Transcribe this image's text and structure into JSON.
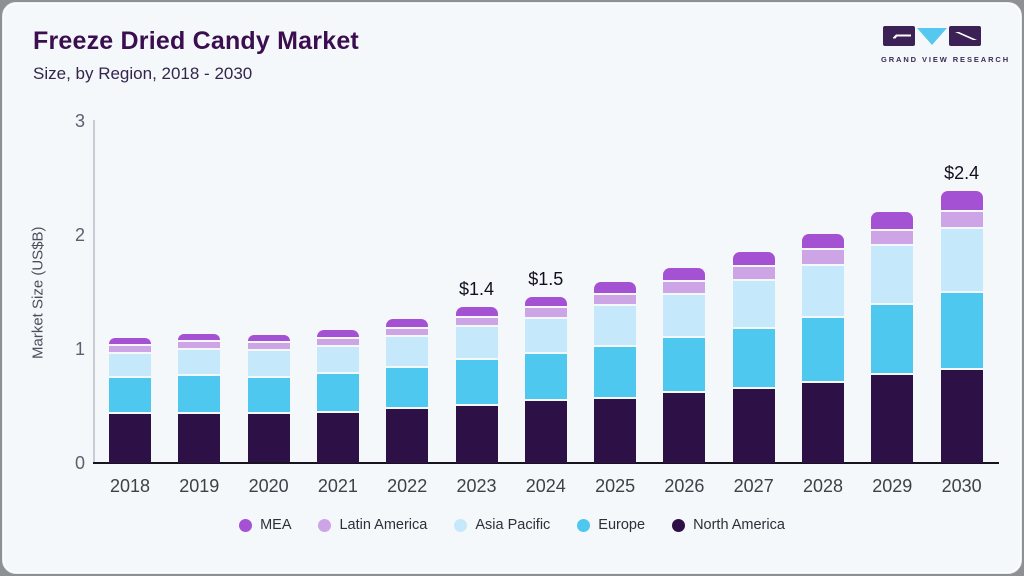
{
  "header": {
    "title": "Freeze Dried Candy Market",
    "subtitle": "Size, by Region, 2018 - 2030"
  },
  "logo": {
    "text": "GRAND VIEW RESEARCH",
    "icon_colors": {
      "squares": "#3b2156",
      "triangle": "#56c7ee"
    }
  },
  "chart_data": {
    "type": "bar",
    "stacked": true,
    "title": "Freeze Dried Candy Market",
    "xlabel": "",
    "ylabel": "Market Size (US$B)",
    "ylim": [
      0,
      3
    ],
    "yticks": [
      0,
      1,
      2,
      3
    ],
    "grid": false,
    "legend_position": "bottom",
    "categories": [
      "2018",
      "2019",
      "2020",
      "2021",
      "2022",
      "2023",
      "2024",
      "2025",
      "2026",
      "2027",
      "2028",
      "2029",
      "2030"
    ],
    "series": [
      {
        "name": "North America",
        "color": "#2d1045",
        "values": [
          0.43,
          0.43,
          0.42,
          0.44,
          0.47,
          0.5,
          0.54,
          0.56,
          0.61,
          0.65,
          0.7,
          0.77,
          0.82
        ]
      },
      {
        "name": "Europe",
        "color": "#4fc8f0",
        "values": [
          0.32,
          0.33,
          0.32,
          0.34,
          0.36,
          0.4,
          0.41,
          0.46,
          0.49,
          0.53,
          0.57,
          0.61,
          0.68
        ]
      },
      {
        "name": "Asia Pacific",
        "color": "#c5e9fa",
        "values": [
          0.21,
          0.23,
          0.24,
          0.24,
          0.27,
          0.29,
          0.31,
          0.36,
          0.38,
          0.42,
          0.46,
          0.52,
          0.56
        ]
      },
      {
        "name": "Latin America",
        "color": "#cda4e6",
        "values": [
          0.07,
          0.07,
          0.07,
          0.07,
          0.07,
          0.08,
          0.1,
          0.1,
          0.11,
          0.12,
          0.14,
          0.13,
          0.15
        ]
      },
      {
        "name": "MEA",
        "color": "#a551d4",
        "values": [
          0.07,
          0.07,
          0.07,
          0.08,
          0.09,
          0.1,
          0.1,
          0.11,
          0.12,
          0.13,
          0.14,
          0.17,
          0.18
        ]
      }
    ],
    "bar_labels": {
      "2023": "$1.4",
      "2024": "$1.5",
      "2030": "$2.4"
    },
    "legend": [
      "MEA",
      "Latin America",
      "Asia Pacific",
      "Europe",
      "North America"
    ]
  }
}
